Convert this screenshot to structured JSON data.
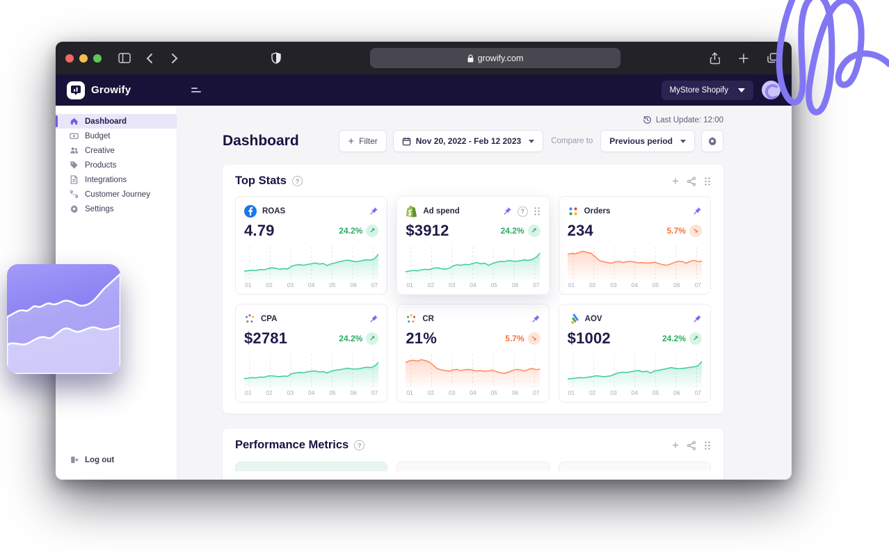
{
  "colors": {
    "accent_purple": "#6c5ce7",
    "pin_purple": "#7b68ee",
    "green_up": "#27ae60",
    "green_line": "#3ecf9b",
    "orange_down": "#f4723c",
    "orange_line": "#ff8a5c",
    "appbar_bg": "#191238",
    "chrome_bg": "#232229",
    "active_item_bg": "#e9e6fa"
  },
  "icons": {
    "up_arrow": "↗",
    "down_arrow": "↘",
    "back": "‹",
    "forward": "›",
    "plus": "+",
    "help": "?"
  },
  "browser": {
    "url": "growify.com",
    "traffic_lights": [
      "#ed6a5e",
      "#f4bf4f",
      "#61c454"
    ]
  },
  "appbar": {
    "brand": "Growify",
    "store_selector": "MyStore Shopify"
  },
  "sidebar": {
    "items": [
      {
        "label": "Dashboard",
        "icon": "home-icon",
        "active": true
      },
      {
        "label": "Budget",
        "icon": "banknote-icon",
        "active": false
      },
      {
        "label": "Creative",
        "icon": "users-icon",
        "active": false
      },
      {
        "label": "Products",
        "icon": "tag-icon",
        "active": false
      },
      {
        "label": "Integrations",
        "icon": "document-icon",
        "active": false
      },
      {
        "label": "Customer Journey",
        "icon": "route-icon",
        "active": false
      },
      {
        "label": "Settings",
        "icon": "gear-icon",
        "active": false
      }
    ],
    "logout_label": "Log out"
  },
  "page": {
    "last_update": "Last Update: 12:00",
    "title": "Dashboard",
    "filter_label": "Filter",
    "date_range": "Nov 20, 2022 - Feb 12 2023",
    "compare_label": "Compare to",
    "compare_value": "Previous period"
  },
  "top_stats": {
    "title": "Top Stats",
    "cards": [
      {
        "label": "ROAS",
        "icon": "facebook-icon",
        "value": "4.79",
        "change": "24.2%",
        "arrow": "↗",
        "direction": "up",
        "hovered": false
      },
      {
        "label": "Ad spend",
        "icon": "shopify-icon",
        "value": "$3912",
        "change": "24.2%",
        "arrow": "↗",
        "direction": "up",
        "hovered": true
      },
      {
        "label": "Orders",
        "icon": "google-dots-icon",
        "value": "234",
        "change": "5.7%",
        "arrow": "↘",
        "direction": "down",
        "hovered": false
      },
      {
        "label": "CPA",
        "icon": "dots-scatter-icon",
        "value": "$2781",
        "change": "24.2%",
        "arrow": "↗",
        "direction": "up",
        "hovered": false
      },
      {
        "label": "CR",
        "icon": "dots-scatter-icon",
        "value": "21%",
        "change": "5.7%",
        "arrow": "↘",
        "direction": "down",
        "hovered": false
      },
      {
        "label": "AOV",
        "icon": "analytics-icon",
        "value": "$1002",
        "change": "24.2%",
        "arrow": "↗",
        "direction": "up",
        "hovered": false
      }
    ]
  },
  "performance": {
    "title": "Performance Metrics"
  },
  "chart_data": [
    {
      "type": "area",
      "card": "ROAS",
      "color": "#3ecf9b",
      "y_normalized": true,
      "x_labels": [
        "01",
        "02",
        "03",
        "04",
        "05",
        "06",
        "07"
      ],
      "values": [
        25,
        26,
        28,
        27,
        30,
        29,
        33,
        36,
        34,
        31,
        33,
        32,
        41,
        45,
        46,
        44,
        47,
        49,
        52,
        48,
        50,
        43,
        49,
        52,
        56,
        58,
        61,
        59,
        56,
        57,
        60,
        62,
        61,
        66,
        82
      ]
    },
    {
      "type": "area",
      "card": "Ad spend",
      "color": "#3ecf9b",
      "y_normalized": true,
      "x_labels": [
        "01",
        "02",
        "03",
        "04",
        "05",
        "06",
        "07"
      ],
      "values": [
        23,
        25,
        27,
        26,
        29,
        31,
        30,
        34,
        36,
        33,
        31,
        34,
        42,
        46,
        44,
        47,
        46,
        50,
        53,
        49,
        51,
        44,
        50,
        54,
        57,
        56,
        60,
        58,
        57,
        59,
        62,
        60,
        63,
        70,
        84
      ]
    },
    {
      "type": "area",
      "card": "Orders",
      "color": "#ff8a5c",
      "y_normalized": true,
      "x_labels": [
        "01",
        "02",
        "03",
        "04",
        "05",
        "06",
        "07"
      ],
      "values": [
        80,
        83,
        82,
        87,
        90,
        86,
        83,
        72,
        60,
        56,
        53,
        51,
        55,
        57,
        53,
        56,
        57,
        54,
        52,
        53,
        51,
        52,
        54,
        50,
        46,
        44,
        48,
        53,
        57,
        56,
        51,
        57,
        60,
        56,
        58
      ]
    },
    {
      "type": "area",
      "card": "CPA",
      "color": "#3ecf9b",
      "y_normalized": true,
      "x_labels": [
        "01",
        "02",
        "03",
        "04",
        "05",
        "06",
        "07"
      ],
      "values": [
        26,
        27,
        29,
        28,
        31,
        30,
        34,
        35,
        33,
        32,
        34,
        33,
        42,
        44,
        46,
        45,
        48,
        50,
        51,
        47,
        49,
        44,
        50,
        53,
        55,
        57,
        60,
        58,
        57,
        58,
        61,
        63,
        62,
        67,
        80
      ]
    },
    {
      "type": "area",
      "card": "CR",
      "color": "#ff8a5c",
      "y_normalized": true,
      "x_labels": [
        "01",
        "02",
        "03",
        "04",
        "05",
        "06",
        "07"
      ],
      "values": [
        78,
        84,
        86,
        83,
        88,
        85,
        80,
        70,
        58,
        55,
        52,
        50,
        54,
        56,
        52,
        55,
        56,
        53,
        51,
        52,
        50,
        51,
        53,
        49,
        45,
        43,
        47,
        52,
        56,
        55,
        50,
        56,
        59,
        55,
        57
      ]
    },
    {
      "type": "area",
      "card": "AOV",
      "color": "#3ecf9b",
      "y_normalized": true,
      "x_labels": [
        "01",
        "02",
        "03",
        "04",
        "05",
        "06",
        "07"
      ],
      "values": [
        24,
        26,
        27,
        29,
        28,
        30,
        32,
        35,
        34,
        32,
        33,
        35,
        41,
        45,
        47,
        46,
        48,
        51,
        52,
        48,
        50,
        44,
        51,
        53,
        56,
        58,
        62,
        60,
        58,
        59,
        61,
        63,
        64,
        68,
        83
      ]
    }
  ]
}
